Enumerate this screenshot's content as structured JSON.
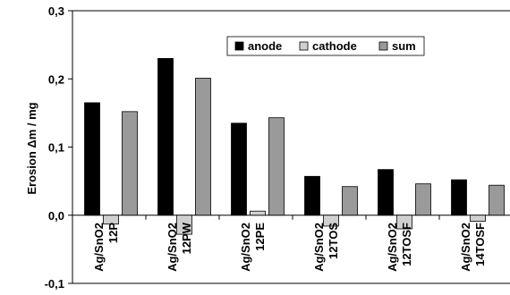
{
  "chart_data": {
    "type": "bar",
    "title": "",
    "xlabel": "",
    "ylabel": "Erosion Δm / mg",
    "ylim": [
      -0.1,
      0.3
    ],
    "yticks": [
      -0.1,
      0.0,
      0.1,
      0.2,
      0.3
    ],
    "ytick_labels": [
      "-0,1",
      "0,0",
      "0,1",
      "0,2",
      "0,3"
    ],
    "grid": false,
    "legend_position": "top-right",
    "categories": [
      [
        "Ag/SnO2",
        "12P"
      ],
      [
        "Ag/SnO2",
        "12PW"
      ],
      [
        "Ag/SnO2",
        "12PE"
      ],
      [
        "Ag/SnO2",
        "12TOS"
      ],
      [
        "Ag/SnO2",
        "12TOSF"
      ],
      [
        "Ag/SnO2",
        "14TOSF"
      ]
    ],
    "series": [
      {
        "name": "anode",
        "color": "#000000",
        "values": [
          0.165,
          0.23,
          0.135,
          0.057,
          0.067,
          0.052
        ]
      },
      {
        "name": "cathode",
        "color": "#d0d0d0",
        "values": [
          -0.013,
          -0.028,
          0.006,
          -0.016,
          -0.02,
          -0.009
        ]
      },
      {
        "name": "sum",
        "color": "#9a9a9a",
        "values": [
          0.152,
          0.201,
          0.143,
          0.042,
          0.046,
          0.044
        ]
      }
    ]
  }
}
